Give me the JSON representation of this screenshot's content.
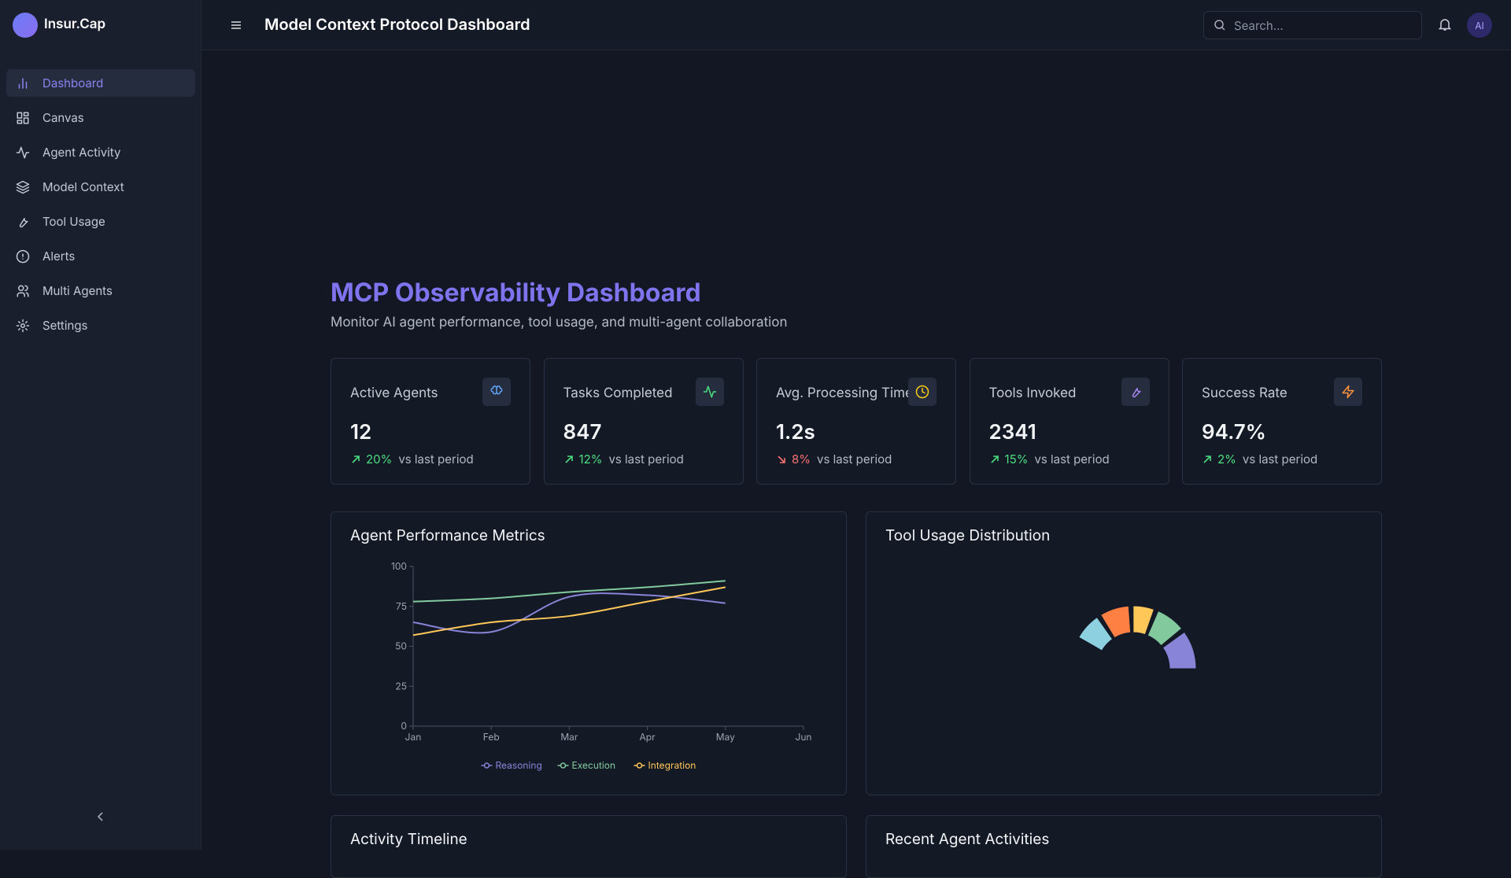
{
  "sidebar": {
    "brand": "Insur.Cap",
    "nav": [
      "Dashboard",
      "Canvas",
      "Agent Activity",
      "Model Context",
      "Tool Usage",
      "Alerts",
      "Multi Agents",
      "Settings"
    ]
  },
  "header": {
    "title": "Model Context Protocol Dashboard",
    "search_placeholder": "Search...",
    "avatar": "AI"
  },
  "page": {
    "title": "MCP Observability Dashboard",
    "subtitle": "Monitor AI agent performance, tool usage, and multi-agent collaboration"
  },
  "stats": [
    {
      "label": "Active Agents",
      "value": "12",
      "change": "20%",
      "trend": "up",
      "note": "vs last period"
    },
    {
      "label": "Tasks Completed",
      "value": "847",
      "change": "12%",
      "trend": "up",
      "note": "vs last period"
    },
    {
      "label": "Avg. Processing Time",
      "value": "1.2s",
      "change": "8%",
      "trend": "down",
      "note": "vs last period"
    },
    {
      "label": "Tools Invoked",
      "value": "2341",
      "change": "15%",
      "trend": "up",
      "note": "vs last period"
    },
    {
      "label": "Success Rate",
      "value": "94.7%",
      "change": "2%",
      "trend": "up",
      "note": "vs last period"
    }
  ],
  "panels": [
    "Activity Timeline",
    "Recent Agent Activities"
  ],
  "chart_data": [
    {
      "type": "line",
      "title": "Agent Performance Metrics",
      "categories": [
        "Jan",
        "Feb",
        "Mar",
        "Apr",
        "May",
        "Jun"
      ],
      "series": [
        {
          "name": "Reasoning",
          "color": "#8884d8",
          "values": [
            65,
            59,
            81,
            82,
            77,
            null
          ]
        },
        {
          "name": "Execution",
          "color": "#82ca9d",
          "values": [
            78,
            80,
            84,
            87,
            91,
            null
          ]
        },
        {
          "name": "Integration",
          "color": "#ffc658",
          "values": [
            57,
            65,
            69,
            78,
            87,
            null
          ]
        }
      ],
      "ylim": [
        0,
        100
      ],
      "yticks": [
        0,
        25,
        50,
        75,
        100
      ]
    },
    {
      "type": "pie",
      "title": "Tool Usage Distribution",
      "values": [
        33,
        25,
        18,
        25,
        23
      ],
      "colors": [
        "#8884d8",
        "#82ca9d",
        "#ffc658",
        "#ff8042",
        "#8dd1e1"
      ]
    }
  ]
}
